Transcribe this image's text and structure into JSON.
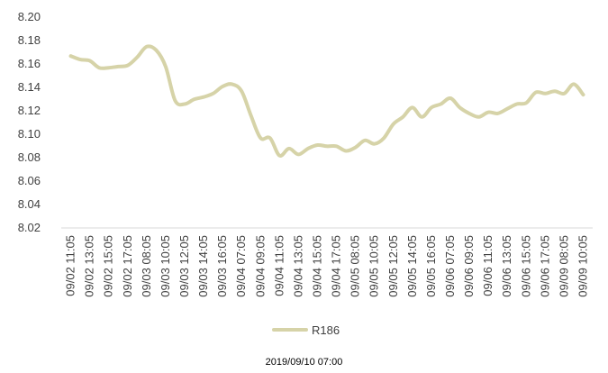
{
  "chart_data": {
    "type": "line",
    "title": "",
    "xlabel": "",
    "ylabel": "",
    "ylim": [
      8.02,
      8.2
    ],
    "yticks": [
      8.02,
      8.04,
      8.06,
      8.08,
      8.1,
      8.12,
      8.14,
      8.16,
      8.18,
      8.2
    ],
    "ytick_labels": [
      "8.02",
      "8.04",
      "8.06",
      "8.08",
      "8.10",
      "8.12",
      "8.14",
      "8.16",
      "8.18",
      "8.20"
    ],
    "categories": [
      "09/02 11:05",
      "09/02 13:05",
      "09/02 15:05",
      "09/02 17:05",
      "09/03 08:05",
      "09/03 10:05",
      "09/03 12:05",
      "09/03 14:05",
      "09/03 16:05",
      "09/04 07:05",
      "09/04 09:05",
      "09/04 11:05",
      "09/04 13:05",
      "09/04 15:05",
      "09/04 17:05",
      "09/05 08:05",
      "09/05 10:05",
      "09/05 12:05",
      "09/05 14:05",
      "09/05 16:05",
      "09/06 07:05",
      "09/06 09:05",
      "09/06 11:05",
      "09/06 13:05",
      "09/06 15:05",
      "09/06 17:05",
      "09/09 08:05",
      "09/09 10:05"
    ],
    "series": [
      {
        "name": "R186",
        "color": "#d6d3a8",
        "x": [
          0,
          0.5,
          1,
          1.5,
          2,
          2.5,
          3,
          3.5,
          4,
          4.5,
          5,
          5.5,
          6,
          6.5,
          7,
          7.5,
          8,
          8.5,
          9,
          9.5,
          10,
          10.5,
          11,
          11.5,
          12,
          12.5,
          13,
          13.5,
          14,
          14.5,
          15,
          15.5,
          16,
          16.5,
          17,
          17.5,
          18,
          18.5,
          19,
          19.5,
          20,
          20.5,
          21,
          21.5,
          22,
          22.5,
          23,
          23.5,
          24,
          24.5,
          25,
          25.5,
          26,
          26.5,
          27
        ],
        "values": [
          8.166,
          8.163,
          8.162,
          8.156,
          8.156,
          8.157,
          8.158,
          8.165,
          8.174,
          8.171,
          8.157,
          8.128,
          8.125,
          8.129,
          8.131,
          8.134,
          8.14,
          8.142,
          8.136,
          8.115,
          8.096,
          8.096,
          8.081,
          8.087,
          8.082,
          8.087,
          8.09,
          8.089,
          8.089,
          8.085,
          8.088,
          8.094,
          8.091,
          8.096,
          8.108,
          8.114,
          8.122,
          8.114,
          8.122,
          8.125,
          8.13,
          8.122,
          8.117,
          8.114,
          8.118,
          8.117,
          8.121,
          8.125,
          8.126,
          8.135,
          8.134,
          8.136,
          8.134,
          8.142,
          8.133
        ]
      }
    ],
    "legend": {
      "position": "bottom",
      "label": "R186"
    },
    "grid": false
  },
  "footer": {
    "date": "2019/09/10 07:00"
  }
}
